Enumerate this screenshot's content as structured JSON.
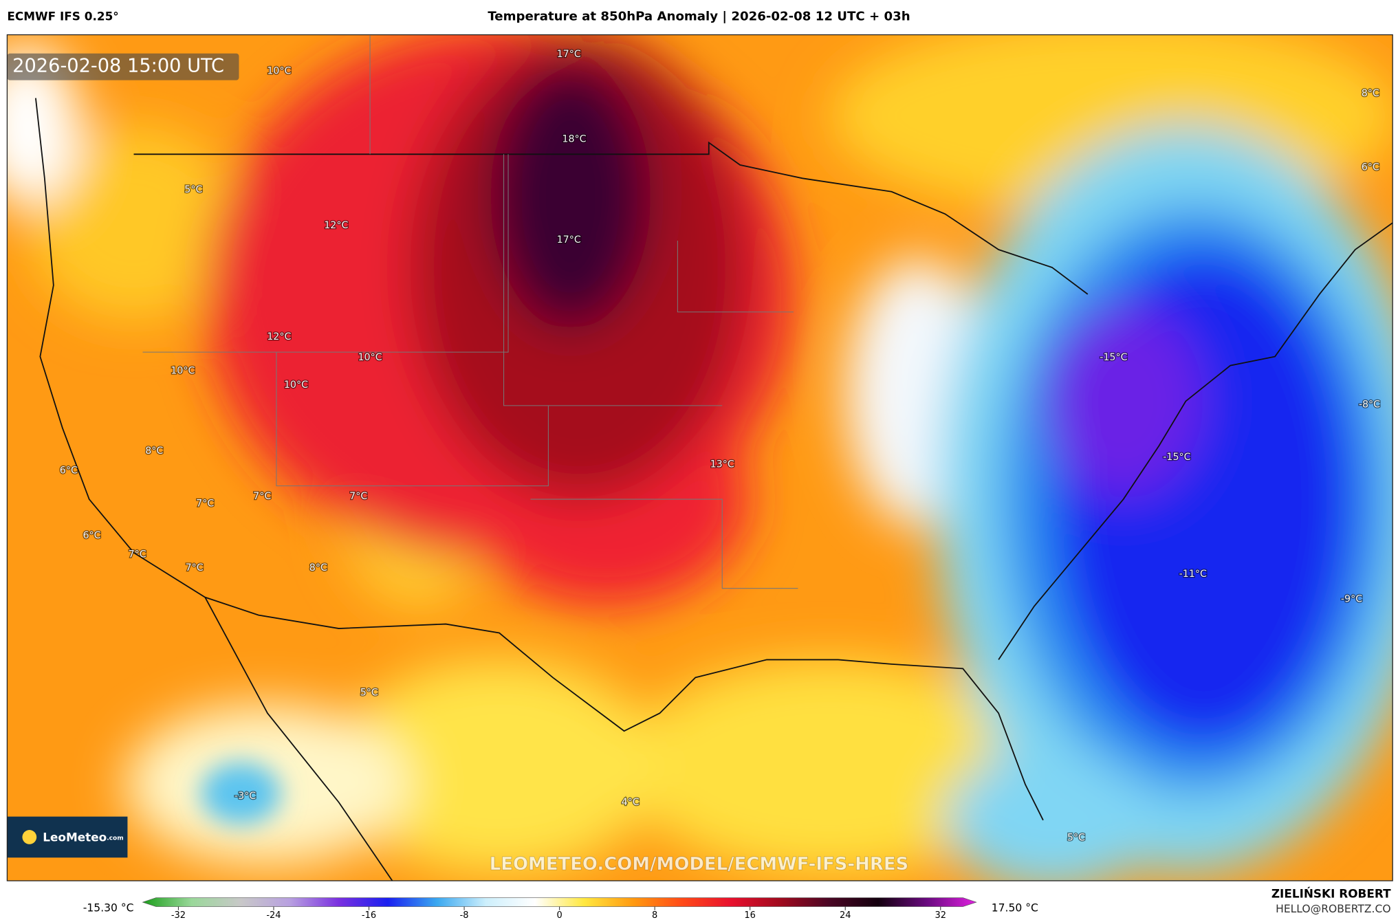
{
  "header": {
    "model": "ECMWF IFS 0.25°",
    "title": "Temperature at 850hPa Anomaly | 2026-02-08 12 UTC + 03h"
  },
  "map": {
    "timestamp": "2026-02-08 15:00 UTC",
    "labels": [
      "10°C",
      "17°C",
      "18°C",
      "5°C",
      "12°C",
      "17°C",
      "12°C",
      "10°C",
      "10°C",
      "10°C",
      "8°C",
      "6°C",
      "7°C",
      "7°C",
      "7°C",
      "6°C",
      "7°C",
      "7°C",
      "8°C",
      "13°C",
      "-15°C",
      "-15°C",
      "-11°C",
      "-9°C",
      "-8°C",
      "8°C",
      "6°C",
      "5°C",
      "-3°C",
      "4°C",
      "5°C"
    ],
    "logo": "LeoMeteo",
    "logo_suffix": ".com",
    "watermark": "LEOMETEO.COM/MODEL/ECMWF-IFS-HRES"
  },
  "colorbar": {
    "min_label": "-15.30 °C",
    "max_label": "17.50 °C",
    "range": [
      -35,
      35
    ],
    "ticks": [
      -32,
      -24,
      -16,
      -8,
      0,
      8,
      16,
      24,
      32
    ],
    "colors": [
      "#1a9e1a",
      "#9ad89a",
      "#c8c8c8",
      "#b8a0e0",
      "#7a30e0",
      "#1a20f0",
      "#3aa8f0",
      "#cdeffc",
      "#ffffff",
      "#ffe840",
      "#ff9a10",
      "#ff4a18",
      "#e8102e",
      "#a00a1e",
      "#4a0624",
      "#14000e",
      "#6a0a80",
      "#e020e0"
    ]
  },
  "footer": {
    "author": "ZIELIŃSKI ROBERT",
    "email": "HELLO@ROBERTZ.CO"
  }
}
